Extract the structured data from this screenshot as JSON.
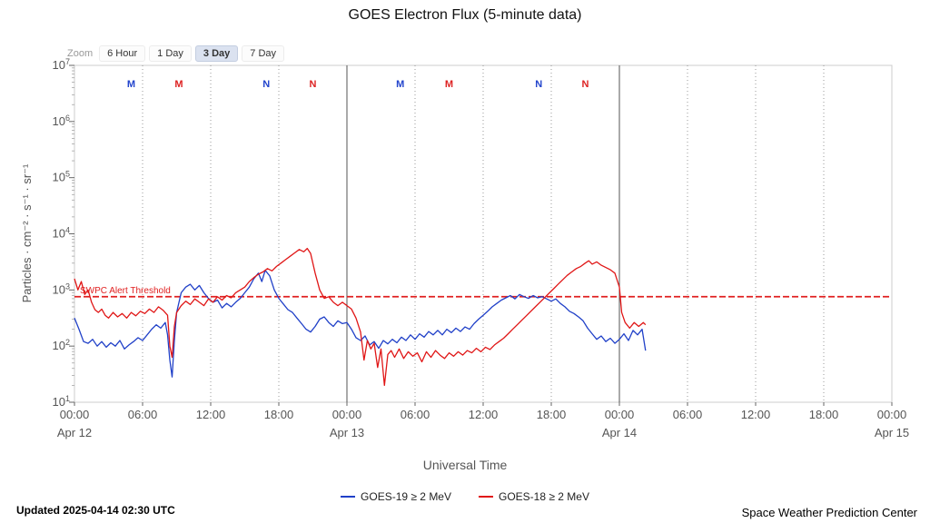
{
  "title": "GOES Electron Flux (5-minute data)",
  "zoom": {
    "label": "Zoom",
    "options": [
      "6 Hour",
      "1 Day",
      "3 Day",
      "7 Day"
    ],
    "active": "3 Day"
  },
  "footer": {
    "updated": "Updated 2025-04-14 02:30 UTC",
    "source": "Space Weather Prediction Center"
  },
  "chart_data": {
    "type": "line",
    "title": "GOES Electron Flux (5-minute data)",
    "xlabel": "Universal Time",
    "ylabel": "Particles · cm⁻² · s⁻¹ · sr⁻¹",
    "x_range_hours": [
      0,
      72
    ],
    "y_log_range": [
      1,
      7
    ],
    "y_tick_exponents": [
      1,
      2,
      3,
      4,
      5,
      6,
      7
    ],
    "x_ticks": [
      {
        "t": 0,
        "label": "00:00"
      },
      {
        "t": 6,
        "label": "06:00"
      },
      {
        "t": 12,
        "label": "12:00"
      },
      {
        "t": 18,
        "label": "18:00"
      },
      {
        "t": 24,
        "label": "00:00"
      },
      {
        "t": 30,
        "label": "06:00"
      },
      {
        "t": 36,
        "label": "12:00"
      },
      {
        "t": 42,
        "label": "18:00"
      },
      {
        "t": 48,
        "label": "00:00"
      },
      {
        "t": 54,
        "label": "06:00"
      },
      {
        "t": 60,
        "label": "12:00"
      },
      {
        "t": 66,
        "label": "18:00"
      },
      {
        "t": 72,
        "label": "00:00"
      }
    ],
    "x_dates": [
      {
        "t": 0,
        "label": "Apr 12"
      },
      {
        "t": 24,
        "label": "Apr 13"
      },
      {
        "t": 48,
        "label": "Apr 14"
      },
      {
        "t": 72,
        "label": "Apr 15"
      }
    ],
    "day_boundaries_hours": [
      24,
      48
    ],
    "threshold": {
      "label": "SWPC Alert Threshold",
      "log10_value": 2.88,
      "color": "#e02020"
    },
    "markers": [
      {
        "t": 5.0,
        "label": "M",
        "color": "#2244cc"
      },
      {
        "t": 9.2,
        "label": "M",
        "color": "#dd2222"
      },
      {
        "t": 16.9,
        "label": "N",
        "color": "#2244cc"
      },
      {
        "t": 21.0,
        "label": "N",
        "color": "#dd2222"
      },
      {
        "t": 28.7,
        "label": "M",
        "color": "#2244cc"
      },
      {
        "t": 33.0,
        "label": "M",
        "color": "#dd2222"
      },
      {
        "t": 40.9,
        "label": "N",
        "color": "#2244cc"
      },
      {
        "t": 45.0,
        "label": "N",
        "color": "#dd2222"
      }
    ],
    "series": [
      {
        "name": "GOES-19 ≥ 2 MeV",
        "color": "#2040c8",
        "points": [
          [
            0,
            2.5
          ],
          [
            0.4,
            2.3
          ],
          [
            0.8,
            2.08
          ],
          [
            1.2,
            2.05
          ],
          [
            1.6,
            2.12
          ],
          [
            2,
            2.0
          ],
          [
            2.4,
            2.08
          ],
          [
            2.8,
            1.98
          ],
          [
            3.2,
            2.06
          ],
          [
            3.6,
            2.0
          ],
          [
            4,
            2.1
          ],
          [
            4.4,
            1.95
          ],
          [
            4.8,
            2.02
          ],
          [
            5.2,
            2.08
          ],
          [
            5.6,
            2.15
          ],
          [
            6,
            2.1
          ],
          [
            6.4,
            2.2
          ],
          [
            6.8,
            2.3
          ],
          [
            7.2,
            2.38
          ],
          [
            7.6,
            2.32
          ],
          [
            8,
            2.42
          ],
          [
            8.2,
            2.2
          ],
          [
            8.4,
            1.75
          ],
          [
            8.6,
            1.45
          ],
          [
            8.8,
            2.1
          ],
          [
            9,
            2.6
          ],
          [
            9.4,
            2.95
          ],
          [
            9.8,
            3.05
          ],
          [
            10.2,
            3.1
          ],
          [
            10.6,
            3.0
          ],
          [
            11,
            3.08
          ],
          [
            11.4,
            2.95
          ],
          [
            11.8,
            2.85
          ],
          [
            12.2,
            2.78
          ],
          [
            12.6,
            2.82
          ],
          [
            13,
            2.68
          ],
          [
            13.4,
            2.76
          ],
          [
            13.8,
            2.7
          ],
          [
            14.2,
            2.78
          ],
          [
            14.6,
            2.85
          ],
          [
            15,
            2.95
          ],
          [
            15.4,
            3.05
          ],
          [
            15.8,
            3.2
          ],
          [
            16.2,
            3.3
          ],
          [
            16.5,
            3.15
          ],
          [
            16.8,
            3.35
          ],
          [
            17.2,
            3.25
          ],
          [
            17.6,
            3.0
          ],
          [
            18,
            2.85
          ],
          [
            18.4,
            2.75
          ],
          [
            18.8,
            2.65
          ],
          [
            19.2,
            2.6
          ],
          [
            19.6,
            2.5
          ],
          [
            20,
            2.4
          ],
          [
            20.4,
            2.3
          ],
          [
            20.8,
            2.25
          ],
          [
            21.2,
            2.35
          ],
          [
            21.6,
            2.48
          ],
          [
            22,
            2.52
          ],
          [
            22.4,
            2.42
          ],
          [
            22.8,
            2.35
          ],
          [
            23.2,
            2.45
          ],
          [
            23.6,
            2.4
          ],
          [
            24,
            2.42
          ],
          [
            24.4,
            2.3
          ],
          [
            24.8,
            2.15
          ],
          [
            25.2,
            2.1
          ],
          [
            25.6,
            2.18
          ],
          [
            26,
            2.02
          ],
          [
            26.4,
            2.08
          ],
          [
            26.8,
            1.96
          ],
          [
            27.2,
            2.1
          ],
          [
            27.6,
            2.04
          ],
          [
            28,
            2.12
          ],
          [
            28.4,
            2.06
          ],
          [
            28.8,
            2.16
          ],
          [
            29.2,
            2.1
          ],
          [
            29.6,
            2.2
          ],
          [
            30,
            2.12
          ],
          [
            30.4,
            2.22
          ],
          [
            30.8,
            2.16
          ],
          [
            31.2,
            2.26
          ],
          [
            31.6,
            2.2
          ],
          [
            32,
            2.28
          ],
          [
            32.4,
            2.2
          ],
          [
            32.8,
            2.3
          ],
          [
            33.2,
            2.24
          ],
          [
            33.6,
            2.32
          ],
          [
            34,
            2.26
          ],
          [
            34.4,
            2.34
          ],
          [
            34.8,
            2.3
          ],
          [
            35.2,
            2.4
          ],
          [
            35.6,
            2.48
          ],
          [
            36,
            2.55
          ],
          [
            36.4,
            2.62
          ],
          [
            36.8,
            2.7
          ],
          [
            37.2,
            2.76
          ],
          [
            37.6,
            2.82
          ],
          [
            38,
            2.86
          ],
          [
            38.4,
            2.9
          ],
          [
            38.8,
            2.84
          ],
          [
            39.2,
            2.92
          ],
          [
            39.6,
            2.88
          ],
          [
            40,
            2.85
          ],
          [
            40.4,
            2.9
          ],
          [
            40.8,
            2.86
          ],
          [
            41.2,
            2.88
          ],
          [
            41.6,
            2.84
          ],
          [
            42,
            2.8
          ],
          [
            42.4,
            2.84
          ],
          [
            42.8,
            2.76
          ],
          [
            43.2,
            2.7
          ],
          [
            43.6,
            2.62
          ],
          [
            44,
            2.58
          ],
          [
            44.4,
            2.52
          ],
          [
            44.8,
            2.45
          ],
          [
            45.2,
            2.32
          ],
          [
            45.6,
            2.22
          ],
          [
            46,
            2.12
          ],
          [
            46.4,
            2.18
          ],
          [
            46.8,
            2.08
          ],
          [
            47.2,
            2.14
          ],
          [
            47.6,
            2.05
          ],
          [
            48,
            2.12
          ],
          [
            48.4,
            2.22
          ],
          [
            48.8,
            2.1
          ],
          [
            49.2,
            2.28
          ],
          [
            49.6,
            2.2
          ],
          [
            50,
            2.3
          ],
          [
            50.3,
            1.92
          ]
        ]
      },
      {
        "name": "GOES-18 ≥ 2 MeV",
        "color": "#e01616",
        "points": [
          [
            0,
            3.2
          ],
          [
            0.3,
            3.0
          ],
          [
            0.6,
            3.15
          ],
          [
            0.9,
            2.92
          ],
          [
            1.2,
            3.0
          ],
          [
            1.5,
            2.78
          ],
          [
            1.8,
            2.65
          ],
          [
            2.1,
            2.6
          ],
          [
            2.4,
            2.66
          ],
          [
            2.7,
            2.55
          ],
          [
            3,
            2.5
          ],
          [
            3.4,
            2.6
          ],
          [
            3.8,
            2.52
          ],
          [
            4.2,
            2.58
          ],
          [
            4.6,
            2.5
          ],
          [
            5,
            2.6
          ],
          [
            5.4,
            2.54
          ],
          [
            5.8,
            2.62
          ],
          [
            6.2,
            2.58
          ],
          [
            6.6,
            2.66
          ],
          [
            7,
            2.6
          ],
          [
            7.4,
            2.7
          ],
          [
            7.8,
            2.64
          ],
          [
            8.2,
            2.55
          ],
          [
            8.4,
            2.0
          ],
          [
            8.6,
            1.8
          ],
          [
            8.8,
            2.35
          ],
          [
            9,
            2.6
          ],
          [
            9.4,
            2.72
          ],
          [
            9.8,
            2.8
          ],
          [
            10.2,
            2.74
          ],
          [
            10.6,
            2.84
          ],
          [
            11,
            2.78
          ],
          [
            11.4,
            2.72
          ],
          [
            11.8,
            2.84
          ],
          [
            12.2,
            2.78
          ],
          [
            12.6,
            2.88
          ],
          [
            13,
            2.82
          ],
          [
            13.4,
            2.9
          ],
          [
            13.8,
            2.86
          ],
          [
            14.2,
            2.95
          ],
          [
            14.6,
            3.0
          ],
          [
            15,
            3.05
          ],
          [
            15.4,
            3.15
          ],
          [
            15.8,
            3.22
          ],
          [
            16.2,
            3.28
          ],
          [
            16.6,
            3.32
          ],
          [
            17,
            3.38
          ],
          [
            17.4,
            3.34
          ],
          [
            17.8,
            3.42
          ],
          [
            18.2,
            3.48
          ],
          [
            18.6,
            3.54
          ],
          [
            19,
            3.6
          ],
          [
            19.4,
            3.66
          ],
          [
            19.8,
            3.72
          ],
          [
            20.2,
            3.68
          ],
          [
            20.5,
            3.74
          ],
          [
            20.8,
            3.65
          ],
          [
            21.2,
            3.3
          ],
          [
            21.6,
            3.0
          ],
          [
            22,
            2.85
          ],
          [
            22.4,
            2.88
          ],
          [
            22.8,
            2.78
          ],
          [
            23.2,
            2.72
          ],
          [
            23.6,
            2.78
          ],
          [
            24,
            2.72
          ],
          [
            24.4,
            2.66
          ],
          [
            24.8,
            2.5
          ],
          [
            25.2,
            2.25
          ],
          [
            25.5,
            1.75
          ],
          [
            25.8,
            2.1
          ],
          [
            26.1,
            1.95
          ],
          [
            26.4,
            2.05
          ],
          [
            26.7,
            1.62
          ],
          [
            27,
            1.95
          ],
          [
            27.3,
            1.3
          ],
          [
            27.6,
            1.85
          ],
          [
            27.9,
            1.92
          ],
          [
            28.2,
            1.8
          ],
          [
            28.6,
            1.95
          ],
          [
            29,
            1.78
          ],
          [
            29.4,
            1.9
          ],
          [
            29.8,
            1.82
          ],
          [
            30.2,
            1.88
          ],
          [
            30.6,
            1.72
          ],
          [
            31,
            1.9
          ],
          [
            31.4,
            1.8
          ],
          [
            31.8,
            1.92
          ],
          [
            32.2,
            1.84
          ],
          [
            32.6,
            1.78
          ],
          [
            33,
            1.88
          ],
          [
            33.4,
            1.82
          ],
          [
            33.8,
            1.9
          ],
          [
            34.2,
            1.84
          ],
          [
            34.6,
            1.92
          ],
          [
            35,
            1.88
          ],
          [
            35.4,
            1.96
          ],
          [
            35.8,
            1.9
          ],
          [
            36.2,
            1.98
          ],
          [
            36.6,
            1.94
          ],
          [
            37,
            2.02
          ],
          [
            37.4,
            2.08
          ],
          [
            37.8,
            2.14
          ],
          [
            38.2,
            2.22
          ],
          [
            38.6,
            2.3
          ],
          [
            39,
            2.38
          ],
          [
            39.4,
            2.46
          ],
          [
            39.8,
            2.54
          ],
          [
            40.2,
            2.62
          ],
          [
            40.6,
            2.7
          ],
          [
            41,
            2.78
          ],
          [
            41.4,
            2.86
          ],
          [
            41.8,
            2.94
          ],
          [
            42.2,
            3.02
          ],
          [
            42.6,
            3.1
          ],
          [
            43,
            3.18
          ],
          [
            43.4,
            3.26
          ],
          [
            43.8,
            3.32
          ],
          [
            44.2,
            3.38
          ],
          [
            44.6,
            3.42
          ],
          [
            45,
            3.48
          ],
          [
            45.3,
            3.52
          ],
          [
            45.6,
            3.46
          ],
          [
            46,
            3.5
          ],
          [
            46.4,
            3.44
          ],
          [
            46.8,
            3.4
          ],
          [
            47.2,
            3.36
          ],
          [
            47.6,
            3.3
          ],
          [
            48,
            3.05
          ],
          [
            48.2,
            2.6
          ],
          [
            48.5,
            2.42
          ],
          [
            48.9,
            2.32
          ],
          [
            49.3,
            2.42
          ],
          [
            49.7,
            2.35
          ],
          [
            50.1,
            2.42
          ],
          [
            50.3,
            2.38
          ]
        ]
      }
    ]
  }
}
